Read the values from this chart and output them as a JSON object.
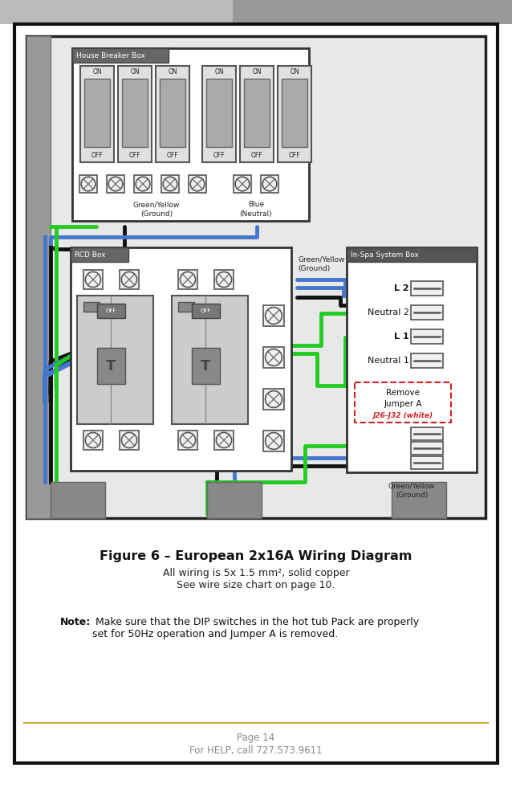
{
  "bg_color": "#ffffff",
  "title": "Figure 6 – European 2x16A Wiring Diagram",
  "subtitle_line1": "All wiring is 5x 1.5 mm², solid copper",
  "subtitle_line2": "See wire size chart on page 10.",
  "note_bold": "Note:",
  "note_text": " Make sure that the DIP switches in the hot tub Pack are properly\nset for 50Hz operation and Jumper A is removed.",
  "footer_line1": "Page 14",
  "footer_line2": "For HELP, call 727.573.9611",
  "wire_black": "#111111",
  "wire_blue": "#4477cc",
  "wire_green": "#22cc22",
  "footer_line_color": "#ccaa44",
  "footer_text_color": "#888888"
}
